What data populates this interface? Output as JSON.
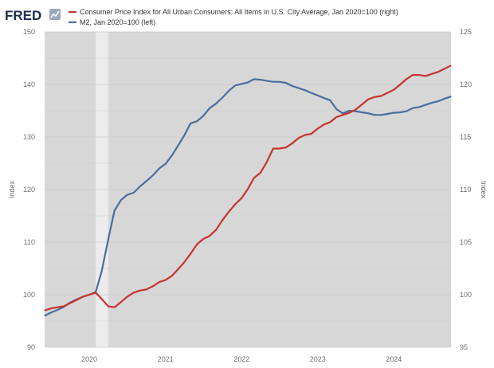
{
  "header": {
    "logo": "FRED",
    "logo_icon": "chart-line-icon"
  },
  "colors": {
    "plot_bg": "#d7d7d7",
    "recession": "#ececec",
    "cpi": "#c8332e",
    "m2": "#4a6d9e"
  },
  "chart_data": {
    "type": "line",
    "legend_position": "top-left",
    "grid": true,
    "ylabel_left": "Index",
    "ylabel_right": "Index",
    "x_ticks": [
      "2020",
      "2021",
      "2022",
      "2023",
      "2024"
    ],
    "y_left_ticks": [
      "150",
      "140",
      "130",
      "120",
      "110",
      "100",
      "90"
    ],
    "y_right_ticks": [
      "125",
      "120",
      "115",
      "110",
      "105",
      "100",
      "95"
    ],
    "ylim_left": [
      90,
      150
    ],
    "ylim_right": [
      95,
      125
    ],
    "xlim": [
      "2019-06-01",
      "2024-10-01"
    ],
    "recession": {
      "start": "2020-02-01",
      "end": "2020-04-01"
    },
    "series": [
      {
        "name": "Consumer Price Index for All Urban Consumers: All Items in U.S. City Average, Jan 2020=100 (right)",
        "axis": "right",
        "color": "#c8332e",
        "points": [
          [
            "2019-06-01",
            98.5
          ],
          [
            "2019-07-01",
            98.7
          ],
          [
            "2019-08-01",
            98.8
          ],
          [
            "2019-09-01",
            98.9
          ],
          [
            "2019-10-01",
            99.2
          ],
          [
            "2019-11-01",
            99.5
          ],
          [
            "2019-12-01",
            99.8
          ],
          [
            "2020-01-01",
            100.0
          ],
          [
            "2020-02-01",
            100.2
          ],
          [
            "2020-03-01",
            99.6
          ],
          [
            "2020-04-01",
            98.9
          ],
          [
            "2020-05-01",
            98.8
          ],
          [
            "2020-06-01",
            99.3
          ],
          [
            "2020-07-01",
            99.8
          ],
          [
            "2020-08-01",
            100.2
          ],
          [
            "2020-09-01",
            100.4
          ],
          [
            "2020-10-01",
            100.5
          ],
          [
            "2020-11-01",
            100.8
          ],
          [
            "2020-12-01",
            101.2
          ],
          [
            "2021-01-01",
            101.4
          ],
          [
            "2021-02-01",
            101.8
          ],
          [
            "2021-03-01",
            102.4
          ],
          [
            "2021-04-01",
            103.1
          ],
          [
            "2021-05-01",
            103.9
          ],
          [
            "2021-06-01",
            104.8
          ],
          [
            "2021-07-01",
            105.3
          ],
          [
            "2021-08-01",
            105.6
          ],
          [
            "2021-09-01",
            106.2
          ],
          [
            "2021-10-01",
            107.1
          ],
          [
            "2021-11-01",
            107.9
          ],
          [
            "2021-12-01",
            108.6
          ],
          [
            "2022-01-01",
            109.2
          ],
          [
            "2022-02-01",
            110.1
          ],
          [
            "2022-03-01",
            111.1
          ],
          [
            "2022-04-01",
            111.6
          ],
          [
            "2022-05-01",
            112.6
          ],
          [
            "2022-06-01",
            113.9
          ],
          [
            "2022-07-01",
            113.9
          ],
          [
            "2022-08-01",
            114.0
          ],
          [
            "2022-09-01",
            114.4
          ],
          [
            "2022-10-01",
            114.9
          ],
          [
            "2022-11-01",
            115.2
          ],
          [
            "2022-12-01",
            115.3
          ],
          [
            "2023-01-01",
            115.8
          ],
          [
            "2023-02-01",
            116.2
          ],
          [
            "2023-03-01",
            116.4
          ],
          [
            "2023-04-01",
            116.9
          ],
          [
            "2023-05-01",
            117.1
          ],
          [
            "2023-06-01",
            117.3
          ],
          [
            "2023-07-01",
            117.6
          ],
          [
            "2023-08-01",
            118.1
          ],
          [
            "2023-09-01",
            118.6
          ],
          [
            "2023-10-01",
            118.8
          ],
          [
            "2023-11-01",
            118.9
          ],
          [
            "2023-12-01",
            119.2
          ],
          [
            "2024-01-01",
            119.5
          ],
          [
            "2024-02-01",
            120.0
          ],
          [
            "2024-03-01",
            120.5
          ],
          [
            "2024-04-01",
            120.9
          ],
          [
            "2024-05-01",
            120.9
          ],
          [
            "2024-06-01",
            120.8
          ],
          [
            "2024-07-01",
            121.0
          ],
          [
            "2024-08-01",
            121.2
          ],
          [
            "2024-09-01",
            121.5
          ],
          [
            "2024-10-01",
            121.8
          ]
        ]
      },
      {
        "name": "M2, Jan 2020=100 (left)",
        "axis": "left",
        "color": "#4a6d9e",
        "points": [
          [
            "2019-06-01",
            96.0
          ],
          [
            "2019-07-01",
            96.6
          ],
          [
            "2019-08-01",
            97.1
          ],
          [
            "2019-09-01",
            97.7
          ],
          [
            "2019-10-01",
            98.5
          ],
          [
            "2019-11-01",
            99.1
          ],
          [
            "2019-12-01",
            99.6
          ],
          [
            "2020-01-01",
            100.0
          ],
          [
            "2020-02-01",
            100.5
          ],
          [
            "2020-03-01",
            104.5
          ],
          [
            "2020-04-01",
            110.5
          ],
          [
            "2020-05-01",
            116.0
          ],
          [
            "2020-06-01",
            118.0
          ],
          [
            "2020-07-01",
            119.0
          ],
          [
            "2020-08-01",
            119.4
          ],
          [
            "2020-09-01",
            120.6
          ],
          [
            "2020-10-01",
            121.6
          ],
          [
            "2020-11-01",
            122.7
          ],
          [
            "2020-12-01",
            124.0
          ],
          [
            "2021-01-01",
            124.9
          ],
          [
            "2021-02-01",
            126.5
          ],
          [
            "2021-03-01",
            128.3
          ],
          [
            "2021-04-01",
            130.3
          ],
          [
            "2021-05-01",
            132.6
          ],
          [
            "2021-06-01",
            133.0
          ],
          [
            "2021-07-01",
            134.0
          ],
          [
            "2021-08-01",
            135.5
          ],
          [
            "2021-09-01",
            136.4
          ],
          [
            "2021-10-01",
            137.5
          ],
          [
            "2021-11-01",
            138.8
          ],
          [
            "2021-12-01",
            139.8
          ],
          [
            "2022-01-01",
            140.1
          ],
          [
            "2022-02-01",
            140.4
          ],
          [
            "2022-03-01",
            141.0
          ],
          [
            "2022-04-01",
            140.9
          ],
          [
            "2022-05-01",
            140.7
          ],
          [
            "2022-06-01",
            140.5
          ],
          [
            "2022-07-01",
            140.5
          ],
          [
            "2022-08-01",
            140.3
          ],
          [
            "2022-09-01",
            139.7
          ],
          [
            "2022-10-01",
            139.3
          ],
          [
            "2022-11-01",
            138.9
          ],
          [
            "2022-12-01",
            138.4
          ],
          [
            "2023-01-01",
            137.9
          ],
          [
            "2023-02-01",
            137.4
          ],
          [
            "2023-03-01",
            137.0
          ],
          [
            "2023-04-01",
            135.3
          ],
          [
            "2023-05-01",
            134.5
          ],
          [
            "2023-06-01",
            135.0
          ],
          [
            "2023-07-01",
            134.9
          ],
          [
            "2023-08-01",
            134.7
          ],
          [
            "2023-09-01",
            134.5
          ],
          [
            "2023-10-01",
            134.2
          ],
          [
            "2023-11-01",
            134.2
          ],
          [
            "2023-12-01",
            134.4
          ],
          [
            "2024-01-01",
            134.6
          ],
          [
            "2024-02-01",
            134.7
          ],
          [
            "2024-03-01",
            134.9
          ],
          [
            "2024-04-01",
            135.5
          ],
          [
            "2024-05-01",
            135.7
          ],
          [
            "2024-06-01",
            136.1
          ],
          [
            "2024-07-01",
            136.5
          ],
          [
            "2024-08-01",
            136.8
          ],
          [
            "2024-09-01",
            137.3
          ],
          [
            "2024-10-01",
            137.7
          ]
        ]
      }
    ]
  }
}
